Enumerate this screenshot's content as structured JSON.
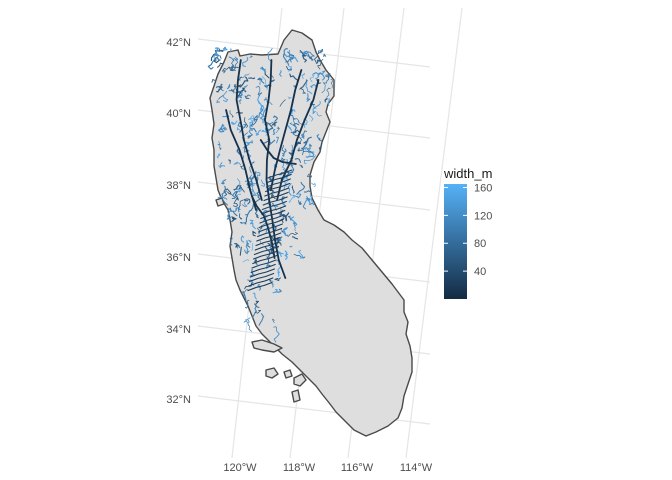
{
  "chart_data": {
    "type": "map",
    "colors": {
      "background": "#ffffff",
      "graticule": "#e5e5e5",
      "land_fill": "#dedede",
      "land_outline": "#4a4a4a",
      "river_low": "#132b43",
      "river_high": "#56b1f7"
    },
    "lat_axis": {
      "ticks": [
        {
          "value": 42,
          "label": "42°N"
        },
        {
          "value": 40,
          "label": "40°N"
        },
        {
          "value": 38,
          "label": "38°N"
        },
        {
          "value": 36,
          "label": "36°N"
        },
        {
          "value": 34,
          "label": "34°N"
        },
        {
          "value": 32,
          "label": "32°N"
        }
      ]
    },
    "lon_axis": {
      "ticks": [
        {
          "value": -120,
          "label": "120°W"
        },
        {
          "value": -118,
          "label": "118°W"
        },
        {
          "value": -116,
          "label": "116°W"
        },
        {
          "value": -114,
          "label": "114°W"
        }
      ]
    },
    "legend": {
      "title": "width_m",
      "min": 0,
      "max": 165,
      "ticks": [
        {
          "value": 160,
          "label": "160"
        },
        {
          "value": 120,
          "label": "120"
        },
        {
          "value": 80,
          "label": "80"
        },
        {
          "value": 40,
          "label": "40"
        }
      ]
    }
  }
}
